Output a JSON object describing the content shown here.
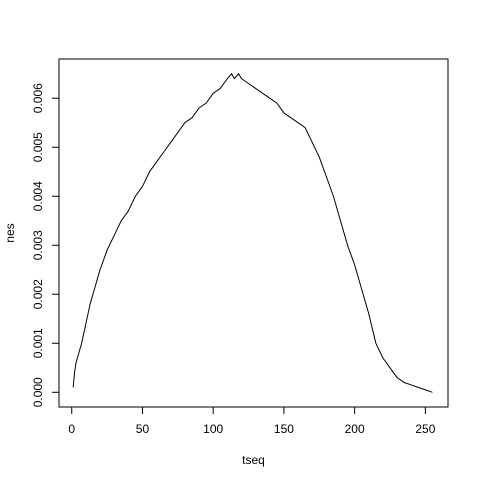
{
  "chart_data": {
    "type": "line",
    "xlabel": "tseq",
    "ylabel": "nes",
    "xlim": [
      -9,
      266
    ],
    "ylim": [
      -0.0003,
      0.0068
    ],
    "x_ticks": [
      0,
      50,
      100,
      150,
      200,
      250
    ],
    "x_tick_labels": [
      "0",
      "50",
      "100",
      "150",
      "200",
      "250"
    ],
    "y_ticks": [
      0.0,
      0.001,
      0.002,
      0.003,
      0.004,
      0.005,
      0.006
    ],
    "y_tick_labels": [
      "0.000",
      "0.001",
      "0.002",
      "0.003",
      "0.004",
      "0.005",
      "0.006"
    ],
    "grid": false,
    "series": [
      {
        "color": "#000000",
        "x": [
          1,
          2,
          3,
          5,
          7,
          10,
          13,
          16,
          20,
          25,
          30,
          35,
          40,
          45,
          50,
          55,
          60,
          65,
          70,
          75,
          80,
          85,
          90,
          95,
          100,
          105,
          110,
          113,
          115,
          118,
          120,
          125,
          130,
          135,
          140,
          145,
          150,
          155,
          160,
          165,
          170,
          175,
          180,
          185,
          190,
          195,
          200,
          205,
          210,
          215,
          220,
          225,
          230,
          235,
          240,
          245,
          250,
          253,
          255
        ],
        "y": [
          0.0001,
          0.0004,
          0.0006,
          0.0008,
          0.001,
          0.0014,
          0.0018,
          0.0021,
          0.0025,
          0.0029,
          0.0032,
          0.0035,
          0.0037,
          0.004,
          0.0042,
          0.0045,
          0.0047,
          0.0049,
          0.0051,
          0.0053,
          0.0055,
          0.0056,
          0.0058,
          0.0059,
          0.0061,
          0.0062,
          0.0064,
          0.0065,
          0.0064,
          0.0065,
          0.0064,
          0.0063,
          0.0062,
          0.0061,
          0.006,
          0.0059,
          0.0057,
          0.0056,
          0.0055,
          0.0054,
          0.0051,
          0.0048,
          0.0044,
          0.004,
          0.0035,
          0.003,
          0.0026,
          0.0021,
          0.0016,
          0.001,
          0.0007,
          0.0005,
          0.0003,
          0.0002,
          0.00015,
          0.0001,
          5e-05,
          2e-05,
          0.0
        ]
      }
    ]
  }
}
